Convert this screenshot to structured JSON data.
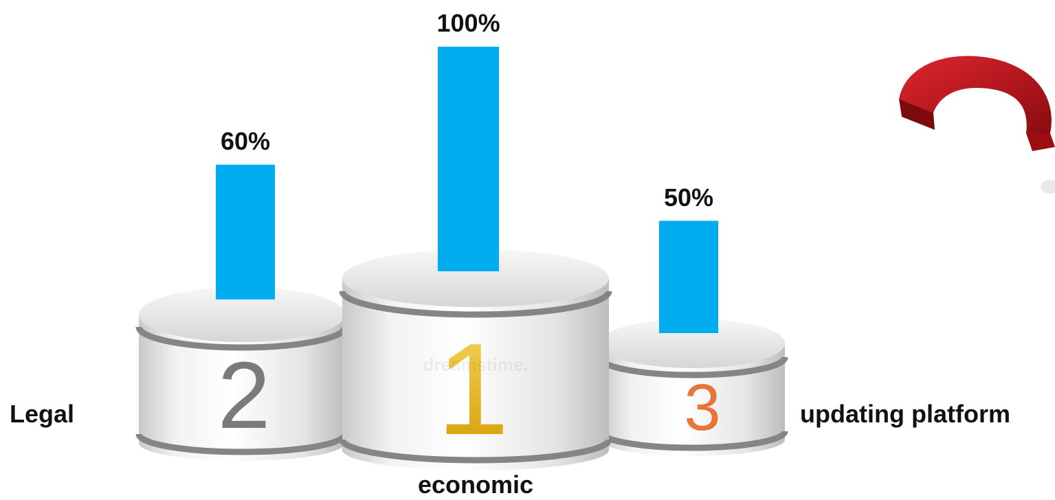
{
  "chart_data": {
    "type": "bar",
    "categories": [
      "Legal",
      "economic",
      "updating platform"
    ],
    "values": [
      60,
      100,
      50
    ],
    "data_labels": [
      "60%",
      "100%",
      "50%"
    ],
    "ranks": [
      "2",
      "1",
      "3"
    ],
    "ylim": [
      0,
      100
    ],
    "grid": false,
    "legend": "none"
  },
  "colors": {
    "bar": "#00adee",
    "rank_2": "#7a7a7a",
    "rank_1": "#e8b20c",
    "rank_3": "#e8743a",
    "question_mark": "#c0141b"
  },
  "decor": {
    "podium_icon": "podium-icon",
    "question_icon": "question-mark-icon",
    "watermark": "dreamstime."
  }
}
